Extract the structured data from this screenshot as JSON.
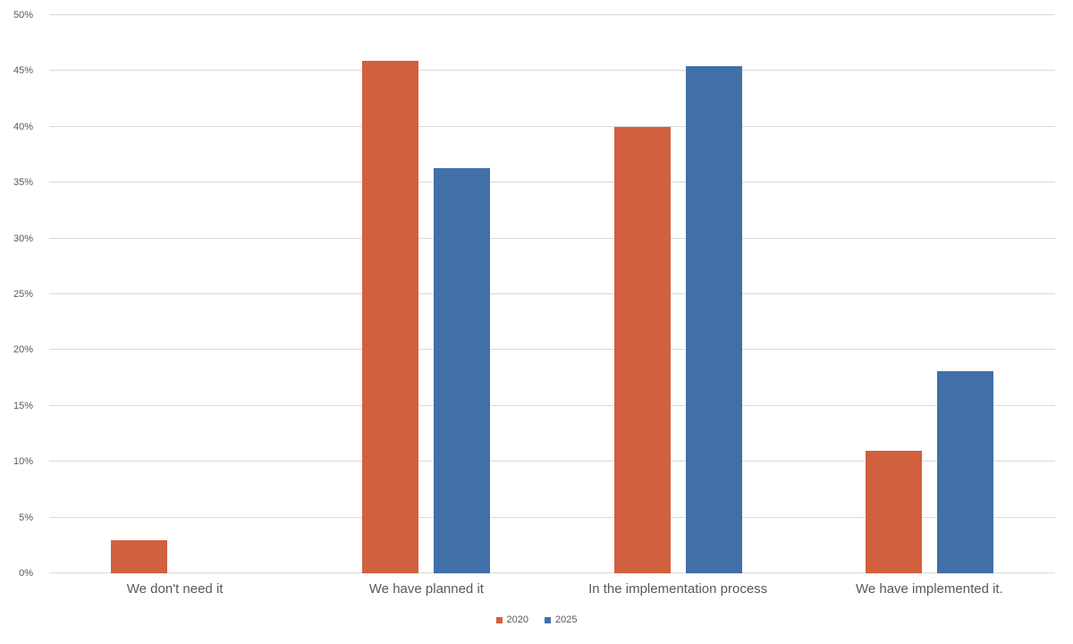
{
  "chart_data": {
    "type": "bar",
    "title": "",
    "xlabel": "",
    "ylabel": "",
    "categories": [
      "We don't need it",
      "We have planned it",
      "In the implementation process",
      "We have implemented it."
    ],
    "series": [
      {
        "name": "2020",
        "color": "#d1603f",
        "values": [
          3,
          45.9,
          40,
          11
        ]
      },
      {
        "name": "2025",
        "color": "#4170a8",
        "values": [
          0,
          36.3,
          45.4,
          18.1
        ]
      }
    ],
    "ylim": [
      0,
      50
    ],
    "yticks": [
      0,
      5,
      10,
      15,
      20,
      25,
      30,
      35,
      40,
      45,
      50
    ],
    "ytick_suffix": "%",
    "grid": true,
    "gridline_color": "#d9d9d9",
    "text_color": "#595959",
    "legend_position": "bottom-center"
  }
}
